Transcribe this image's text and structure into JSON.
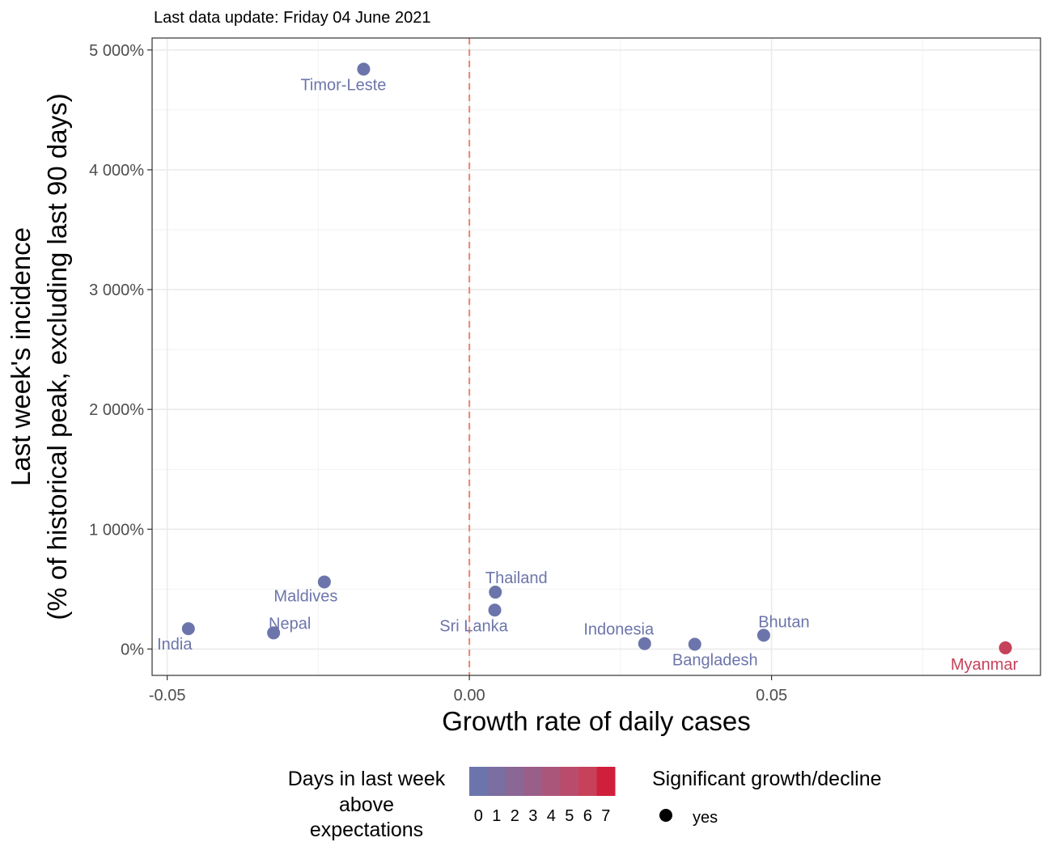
{
  "chart_data": {
    "type": "scatter",
    "subtitle": "Last data update: Friday 04 June 2021",
    "xlabel": "Growth rate of daily cases",
    "ylabel_line1": "Last week's incidence",
    "ylabel_line2": "(% of historical peak, excluding last 90 days)",
    "xlim": [
      -0.0525,
      0.0945
    ],
    "ylim": [
      -220,
      5100
    ],
    "x_ticks": [
      -0.05,
      0.0,
      0.05
    ],
    "x_tick_labels": [
      "-0.05",
      "0.00",
      "0.05"
    ],
    "y_ticks": [
      0,
      1000,
      2000,
      3000,
      4000,
      5000
    ],
    "y_tick_labels": [
      "0%",
      "1 000%",
      "2 000%",
      "3 000%",
      "4 000%",
      "5 000%"
    ],
    "reference_line_x": 0,
    "grid": true,
    "points": [
      {
        "label": "Timor-Leste",
        "x": -0.0175,
        "y": 4840,
        "days_above": 0,
        "significant": "yes"
      },
      {
        "label": "Maldives",
        "x": -0.024,
        "y": 560,
        "days_above": 0,
        "significant": "yes"
      },
      {
        "label": "Thailand",
        "x": 0.0043,
        "y": 475,
        "days_above": 0,
        "significant": "yes"
      },
      {
        "label": "Sri Lanka",
        "x": 0.0042,
        "y": 325,
        "days_above": 0,
        "significant": "yes"
      },
      {
        "label": "India",
        "x": -0.0465,
        "y": 170,
        "days_above": 0,
        "significant": "yes"
      },
      {
        "label": "Nepal",
        "x": -0.0324,
        "y": 135,
        "days_above": 0,
        "significant": "yes"
      },
      {
        "label": "Indonesia",
        "x": 0.029,
        "y": 45,
        "days_above": 0,
        "significant": "yes"
      },
      {
        "label": "Bangladesh",
        "x": 0.0373,
        "y": 40,
        "days_above": 0,
        "significant": "yes"
      },
      {
        "label": "Bhutan",
        "x": 0.0487,
        "y": 115,
        "days_above": 0,
        "significant": "yes"
      },
      {
        "label": "Myanmar",
        "x": 0.0887,
        "y": 10,
        "days_above": 6,
        "significant": "yes"
      }
    ],
    "legend_color": {
      "title_lines": [
        "Days in last week",
        "above",
        "expectations"
      ],
      "levels": [
        "0",
        "1",
        "2",
        "3",
        "4",
        "5",
        "6",
        "7"
      ],
      "colors": [
        "#6c75ab",
        "#7b6ea0",
        "#8a6794",
        "#9a5f88",
        "#aa567a",
        "#b94c6c",
        "#c6415a",
        "#d01f3b"
      ]
    },
    "legend_shape": {
      "title": "Significant growth/decline",
      "entries": [
        "yes"
      ]
    }
  }
}
